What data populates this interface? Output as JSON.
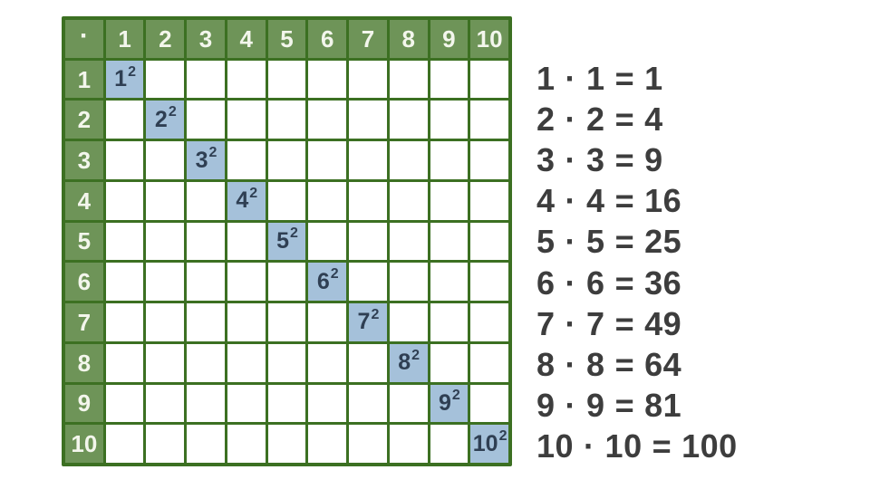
{
  "table": {
    "operator_symbol": "·",
    "column_headers": [
      "1",
      "2",
      "3",
      "4",
      "5",
      "6",
      "7",
      "8",
      "9",
      "10"
    ],
    "row_headers": [
      "1",
      "2",
      "3",
      "4",
      "5",
      "6",
      "7",
      "8",
      "9",
      "10"
    ],
    "diagonal_bases": [
      "1",
      "2",
      "3",
      "4",
      "5",
      "6",
      "7",
      "8",
      "9",
      "10"
    ],
    "exponent": "2"
  },
  "equations": {
    "operator": "·",
    "equals": "=",
    "items": [
      {
        "a": "1",
        "b": "1",
        "product": "1"
      },
      {
        "a": "2",
        "b": "2",
        "product": "4"
      },
      {
        "a": "3",
        "b": "3",
        "product": "9"
      },
      {
        "a": "4",
        "b": "4",
        "product": "16"
      },
      {
        "a": "5",
        "b": "5",
        "product": "25"
      },
      {
        "a": "6",
        "b": "6",
        "product": "36"
      },
      {
        "a": "7",
        "b": "7",
        "product": "49"
      },
      {
        "a": "8",
        "b": "8",
        "product": "64"
      },
      {
        "a": "9",
        "b": "9",
        "product": "81"
      },
      {
        "a": "10",
        "b": "10",
        "product": "100"
      }
    ]
  },
  "colors": {
    "background": "#ffffff",
    "header_green": "#6e9458",
    "grid_line_green": "#3c7022",
    "highlight_blue": "#a5c1da",
    "highlight_text": "#2f3f53",
    "header_text": "#f3f6ec",
    "equation_text": "#3d3d3d"
  }
}
